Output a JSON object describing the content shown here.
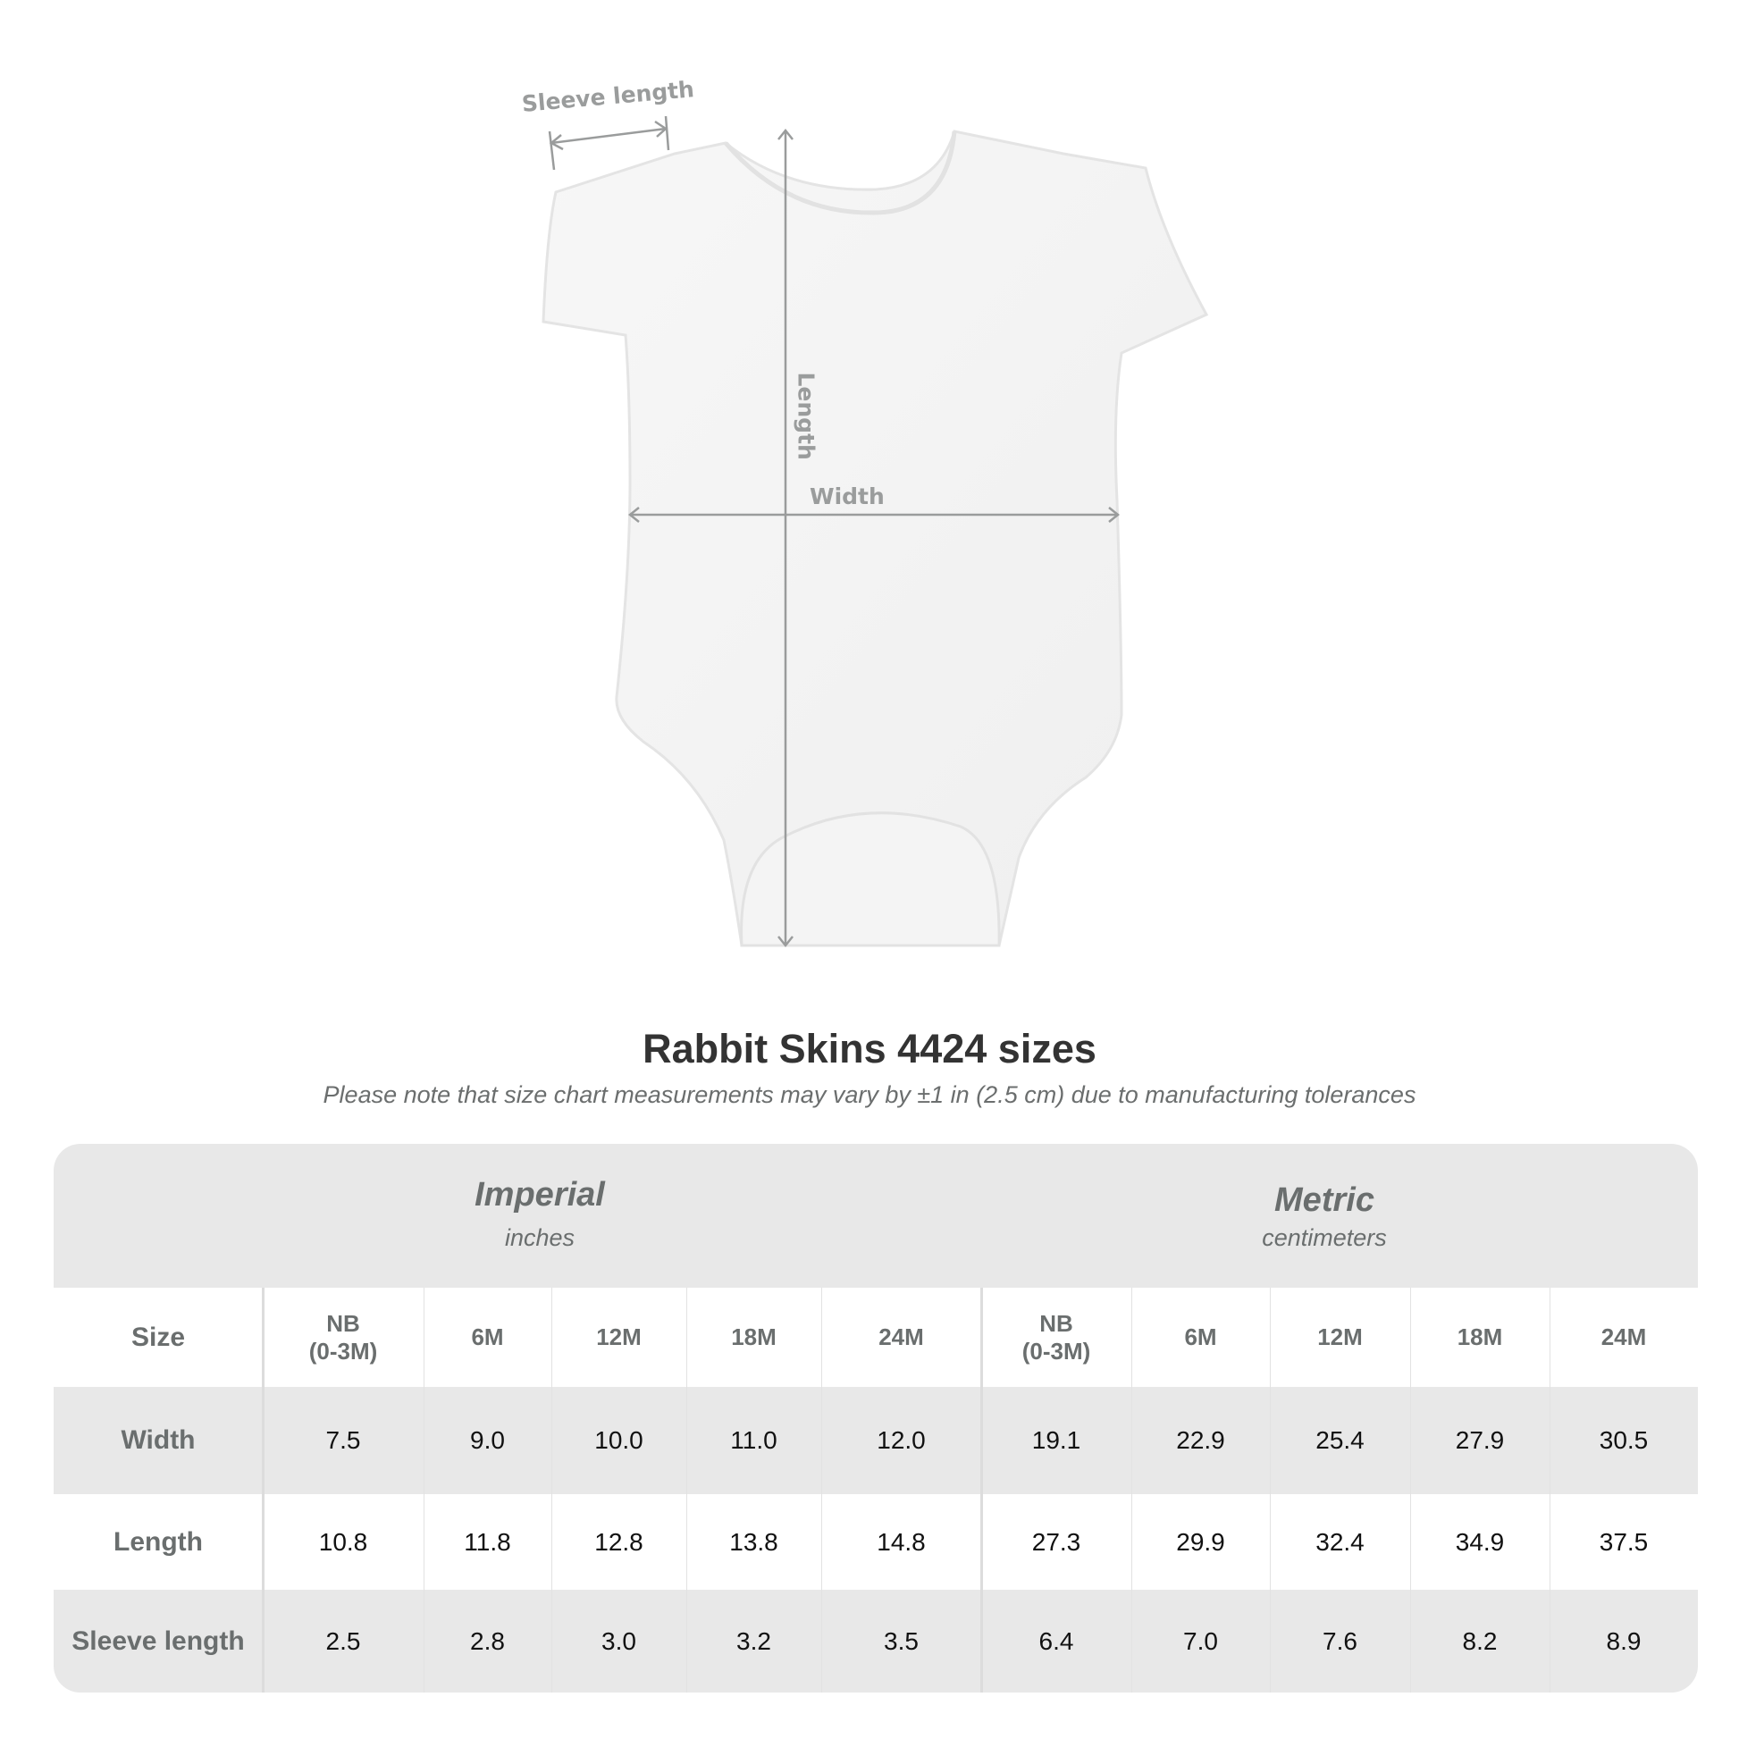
{
  "diagram": {
    "sleeve_label": "Sleeve length",
    "length_label": "Length",
    "width_label": "Width"
  },
  "title": "Rabbit Skins 4424 sizes",
  "subtitle": "Please note that size chart measurements may vary by ±1 in (2.5 cm) due to manufacturing tolerances",
  "table": {
    "imperial": {
      "title": "Imperial",
      "unit": "inches"
    },
    "metric": {
      "title": "Metric",
      "unit": "centimeters"
    },
    "size_label": "Size",
    "sizes": [
      "NB\n(0-3M)",
      "6M",
      "12M",
      "18M",
      "24M"
    ],
    "rows": [
      {
        "label": "Width",
        "imperial": [
          "7.5",
          "9.0",
          "10.0",
          "11.0",
          "12.0"
        ],
        "metric": [
          "19.1",
          "22.9",
          "25.4",
          "27.9",
          "30.5"
        ]
      },
      {
        "label": "Length",
        "imperial": [
          "10.8",
          "11.8",
          "12.8",
          "13.8",
          "14.8"
        ],
        "metric": [
          "27.3",
          "29.9",
          "32.4",
          "34.9",
          "37.5"
        ]
      },
      {
        "label": "Sleeve length",
        "imperial": [
          "2.5",
          "2.8",
          "3.0",
          "3.2",
          "3.5"
        ],
        "metric": [
          "6.4",
          "7.0",
          "7.6",
          "8.2",
          "8.9"
        ]
      }
    ]
  },
  "colors": {
    "band": "#e8e8e8",
    "header_text": "#6a6e6e",
    "measure_line": "#9a9c9c"
  }
}
